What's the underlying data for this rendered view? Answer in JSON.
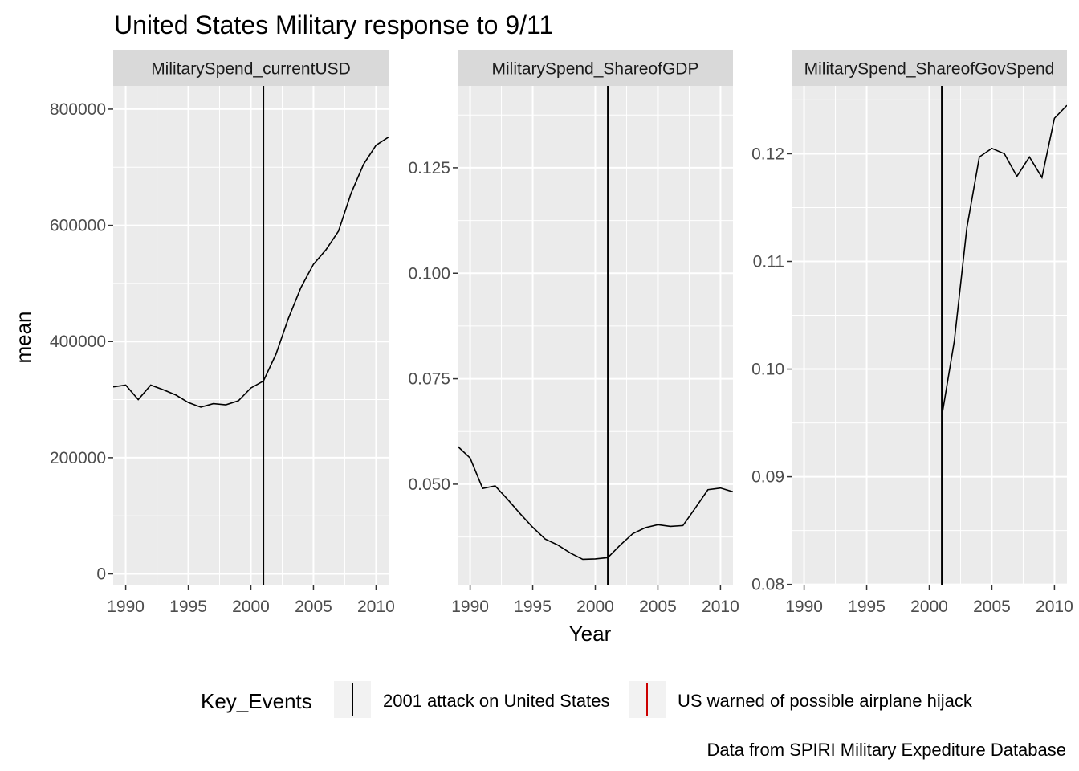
{
  "title": "United States Military response to 9/11",
  "caption": "Data from SPIRI Military Expediture Database",
  "x_axis_title": "Year",
  "y_axis_title": "mean",
  "legend": {
    "title": "Key_Events",
    "items": [
      {
        "label": "2001 attack on United States",
        "color": "#000000"
      },
      {
        "label": "US warned of possible airplane hijack",
        "color": "#cc0000"
      }
    ]
  },
  "colors": {
    "panel_background": "#ebebeb",
    "strip_background": "#d9d9d9",
    "gridline": "#ffffff",
    "line": "#000000",
    "text": "#000000",
    "tick_label": "#4d4d4d"
  },
  "chart_data": [
    {
      "type": "line",
      "facet_label": "MilitarySpend_currentUSD",
      "xlim": [
        1989,
        2011
      ],
      "ylim": [
        -20000,
        840000
      ],
      "x_ticks": [
        1990,
        1995,
        2000,
        2005,
        2010
      ],
      "y_ticks": [
        0,
        200000,
        400000,
        600000,
        800000
      ],
      "y_tick_labels": [
        "0",
        "200000",
        "400000",
        "600000",
        "800000"
      ],
      "event_year": 2001,
      "series": [
        {
          "x": [
            1989,
            1990,
            1991,
            1992,
            1993,
            1994,
            1995,
            1996,
            1997,
            1998,
            1999,
            2000,
            2001,
            2002,
            2003,
            2004,
            2005,
            2006,
            2007,
            2008,
            2009,
            2010,
            2011
          ],
          "values": [
            322000,
            325000,
            300000,
            325000,
            317000,
            308000,
            295000,
            287000,
            293000,
            291000,
            298000,
            320000,
            332000,
            378000,
            440000,
            493000,
            533000,
            558000,
            590000,
            655000,
            705000,
            738000,
            752000
          ]
        }
      ]
    },
    {
      "type": "line",
      "facet_label": "MilitarySpend_ShareofGDP",
      "xlim": [
        1989,
        2011
      ],
      "ylim": [
        0.026,
        0.1444
      ],
      "x_ticks": [
        1990,
        1995,
        2000,
        2005,
        2010
      ],
      "y_ticks": [
        0.05,
        0.075,
        0.1,
        0.125
      ],
      "y_tick_labels": [
        "0.050",
        "0.075",
        "0.100",
        "0.125"
      ],
      "event_year": 2001,
      "series": [
        {
          "x": [
            1989,
            1990,
            1991,
            1992,
            1993,
            1994,
            1995,
            1996,
            1997,
            1998,
            1999,
            2000,
            2001,
            2002,
            2003,
            2004,
            2005,
            2006,
            2007,
            2008,
            2009,
            2010,
            2011
          ],
          "values": [
            0.059,
            0.0562,
            0.049,
            0.0496,
            0.0464,
            0.043,
            0.0398,
            0.037,
            0.0356,
            0.0337,
            0.0322,
            0.0323,
            0.0326,
            0.0356,
            0.0383,
            0.0397,
            0.0404,
            0.04,
            0.0402,
            0.0444,
            0.0487,
            0.0491,
            0.0482
          ]
        }
      ]
    },
    {
      "type": "line",
      "facet_label": "MilitarySpend_ShareofGovSpend",
      "xlim": [
        1989,
        2011
      ],
      "ylim": [
        0.0799,
        0.1263
      ],
      "x_ticks": [
        1990,
        1995,
        2000,
        2005,
        2010
      ],
      "y_ticks": [
        0.08,
        0.09,
        0.1,
        0.11,
        0.12
      ],
      "y_tick_labels": [
        "0.08",
        "0.09",
        "0.10",
        "0.11",
        "0.12"
      ],
      "event_year": 2001,
      "series": [
        {
          "x": [
            2001,
            2002,
            2003,
            2004,
            2005,
            2006,
            2007,
            2008,
            2009,
            2010,
            2011
          ],
          "values": [
            0.0956,
            0.1026,
            0.1131,
            0.1197,
            0.1205,
            0.12,
            0.1179,
            0.1197,
            0.1178,
            0.1233,
            0.1245
          ]
        }
      ]
    }
  ]
}
